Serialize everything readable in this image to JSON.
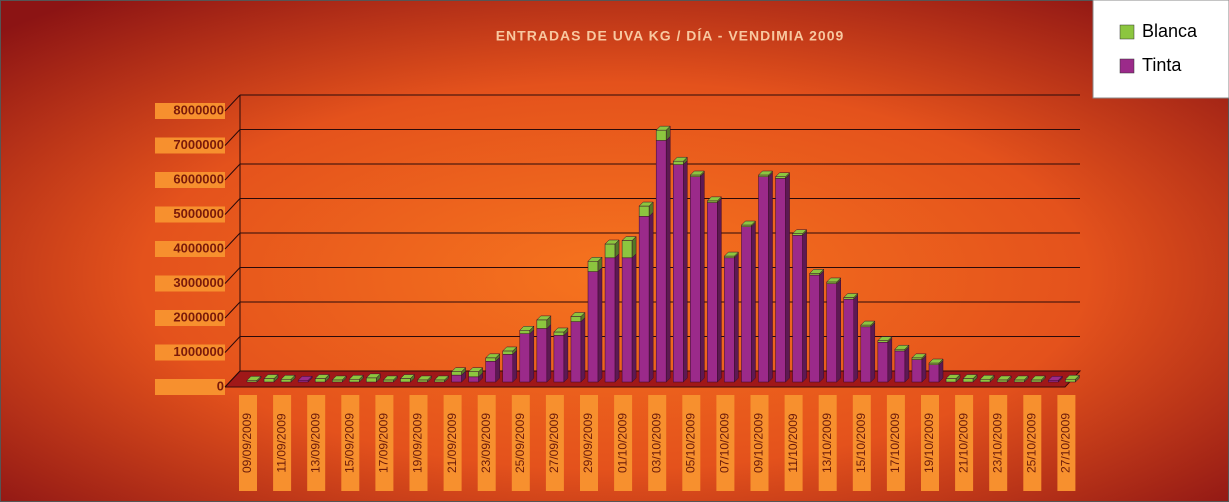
{
  "chart_data": {
    "type": "bar",
    "stacked": true,
    "title": "ENTRADAS DE UVA KG /  DÍA - VENDIMIA 2009",
    "categories": [
      "09/09/2009",
      null,
      "11/09/2009",
      null,
      "13/09/2009",
      null,
      "15/09/2009",
      null,
      "17/09/2009",
      null,
      "19/09/2009",
      null,
      "21/09/2009",
      null,
      "23/09/2009",
      null,
      "25/09/2009",
      null,
      "27/09/2009",
      null,
      "29/09/2009",
      null,
      "01/10/2009",
      null,
      "03/10/2009",
      null,
      "05/10/2009",
      null,
      "07/10/2009",
      null,
      "09/10/2009",
      null,
      "11/10/2009",
      null,
      "13/10/2009",
      null,
      "15/10/2009",
      null,
      "17/10/2009",
      null,
      "19/10/2009",
      null,
      "21/10/2009",
      null,
      "23/10/2009",
      null,
      "25/10/2009",
      null,
      "27/10/2009"
    ],
    "series": [
      {
        "name": "Tinta",
        "color": "#9b2a8a",
        "values": [
          0,
          0,
          0,
          50000,
          0,
          0,
          0,
          0,
          0,
          0,
          0,
          0,
          200000,
          150000,
          600000,
          800000,
          1400000,
          1550000,
          1350000,
          1750000,
          3200000,
          3600000,
          3600000,
          4800000,
          7000000,
          6300000,
          5950000,
          5200000,
          3600000,
          4500000,
          5950000,
          5900000,
          4250000,
          3100000,
          2850000,
          2400000,
          1600000,
          1150000,
          900000,
          650000,
          500000,
          0,
          0,
          0,
          0,
          0,
          0,
          50000,
          0
        ]
      },
      {
        "name": "Blanca",
        "color": "#8cc63f",
        "values": [
          50000,
          100000,
          80000,
          0,
          100000,
          60000,
          80000,
          120000,
          60000,
          100000,
          60000,
          60000,
          100000,
          150000,
          100000,
          100000,
          100000,
          250000,
          100000,
          150000,
          300000,
          400000,
          500000,
          300000,
          300000,
          100000,
          50000,
          50000,
          50000,
          50000,
          50000,
          50000,
          50000,
          50000,
          50000,
          50000,
          50000,
          50000,
          50000,
          50000,
          50000,
          100000,
          100000,
          80000,
          60000,
          60000,
          60000,
          0,
          80000
        ]
      }
    ],
    "ylim": [
      0,
      8000000
    ],
    "yticks": [
      0,
      1000000,
      2000000,
      3000000,
      4000000,
      5000000,
      6000000,
      7000000,
      8000000
    ],
    "grid": true,
    "legend": "top-right"
  }
}
